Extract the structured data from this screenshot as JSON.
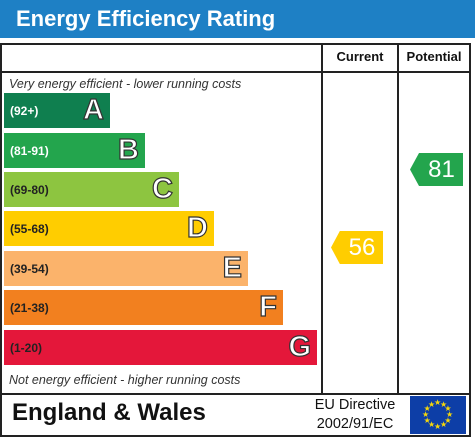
{
  "title": "Energy Efficiency Rating",
  "columns": {
    "current": "Current",
    "potential": "Potential"
  },
  "top_caption": "Very energy efficient - lower running costs",
  "bottom_caption": "Not energy efficient - higher running costs",
  "bands": [
    {
      "range": "(92+)",
      "letter": "A",
      "color": "#0f7f4f",
      "text_color": "#ffffff"
    },
    {
      "range": "(81-91)",
      "letter": "B",
      "color": "#23a54d",
      "text_color": "#ffffff"
    },
    {
      "range": "(69-80)",
      "letter": "C",
      "color": "#8dc540",
      "text_color": "#222222"
    },
    {
      "range": "(55-68)",
      "letter": "D",
      "color": "#ffcd00",
      "text_color": "#222222"
    },
    {
      "range": "(39-54)",
      "letter": "E",
      "color": "#fbb36b",
      "text_color": "#222222"
    },
    {
      "range": "(21-38)",
      "letter": "F",
      "color": "#f2801f",
      "text_color": "#222222"
    },
    {
      "range": "(1-20)",
      "letter": "G",
      "color": "#e4173a",
      "text_color": "#222222"
    }
  ],
  "current": {
    "value": "56",
    "band": "D",
    "color": "#ffcd00"
  },
  "potential": {
    "value": "81",
    "band": "B",
    "color": "#23a54d"
  },
  "footer": {
    "region": "England & Wales",
    "directive_line1": "EU Directive",
    "directive_line2": "2002/91/EC",
    "flag_color": "#0d3ea7",
    "star_color": "#f5d70a"
  }
}
